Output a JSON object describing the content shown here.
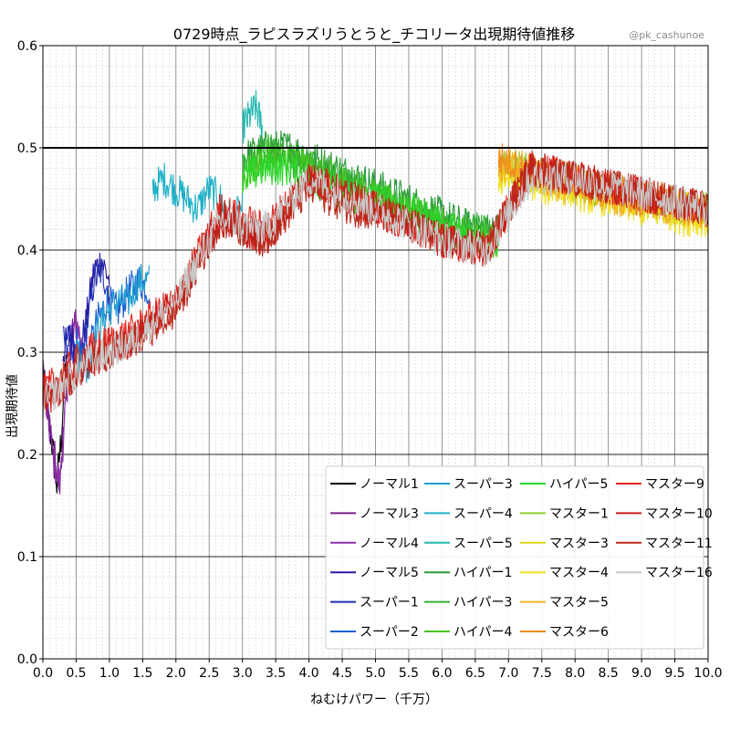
{
  "chart_data": {
    "type": "line",
    "title": "0729時点_ラピスラズリうとうと_チコリータ出現期待値推移",
    "credit": "@pk_cashunoe",
    "xlabel": "ねむけパワー（千万）",
    "ylabel": "出現期待値",
    "xlim": [
      0.0,
      10.0
    ],
    "ylim": [
      0.0,
      0.6
    ],
    "xticks": [
      "0.0",
      "0.5",
      "1.0",
      "1.5",
      "2.0",
      "2.5",
      "3.0",
      "3.5",
      "4.0",
      "4.5",
      "5.0",
      "5.5",
      "6.0",
      "6.5",
      "7.0",
      "7.5",
      "8.0",
      "8.5",
      "9.0",
      "9.5",
      "10.0"
    ],
    "yticks": [
      "0.0",
      "0.1",
      "0.2",
      "0.3",
      "0.4",
      "0.5",
      "0.6"
    ],
    "grid": true,
    "reference_line": {
      "y": 0.5,
      "color": "#000000"
    },
    "legend_position": "lower-right",
    "series": [
      {
        "name": "ノーマル1",
        "color": "#000000",
        "x_range": [
          0.0,
          0.35
        ],
        "values": [
          0.28,
          0.24,
          0.21,
          0.17,
          0.22,
          0.3
        ]
      },
      {
        "name": "ノーマル3",
        "color": "#7a1f8a",
        "x_range": [
          0.0,
          0.5
        ],
        "values": [
          0.28,
          0.24,
          0.2,
          0.18,
          0.24,
          0.31,
          0.33
        ]
      },
      {
        "name": "ノーマル4",
        "color": "#8b2fa8",
        "x_range": [
          0.0,
          0.6
        ],
        "values": [
          0.27,
          0.23,
          0.19,
          0.17,
          0.25,
          0.32,
          0.33,
          0.3
        ]
      },
      {
        "name": "ノーマル5",
        "color": "#2a1a9e",
        "x_range": [
          0.3,
          1.0
        ],
        "values": [
          0.3,
          0.32,
          0.29,
          0.33,
          0.38,
          0.39,
          0.37
        ]
      },
      {
        "name": "スーパー1",
        "color": "#1f2fb0",
        "x_range": [
          0.3,
          1.0
        ],
        "values": [
          0.31,
          0.31,
          0.28,
          0.32,
          0.37,
          0.38,
          0.36
        ]
      },
      {
        "name": "スーパー2",
        "color": "#1f5fd0",
        "x_range": [
          0.5,
          1.6
        ],
        "values": [
          0.31,
          0.29,
          0.33,
          0.35,
          0.34,
          0.36,
          0.37,
          0.36
        ]
      },
      {
        "name": "スーパー3",
        "color": "#1f9fd0",
        "x_range": [
          0.5,
          1.6
        ],
        "values": [
          0.3,
          0.28,
          0.32,
          0.34,
          0.35,
          0.35,
          0.37,
          0.37
        ]
      },
      {
        "name": "スーパー4",
        "color": "#1fb0c8",
        "x_range": [
          1.65,
          3.0
        ],
        "values": [
          0.46,
          0.47,
          0.46,
          0.45,
          0.44,
          0.46,
          0.45,
          0.43,
          0.44
        ]
      },
      {
        "name": "スーパー5",
        "color": "#25b8b0",
        "x_range": [
          3.0,
          3.3
        ],
        "values": [
          0.52,
          0.53,
          0.54,
          0.52
        ]
      },
      {
        "name": "ハイパー1",
        "color": "#2a9a3a",
        "x_range": [
          3.0,
          6.85
        ],
        "values": [
          0.49,
          0.5,
          0.5,
          0.49,
          0.48,
          0.47,
          0.46,
          0.45,
          0.44,
          0.43,
          0.42,
          0.42
        ]
      },
      {
        "name": "ハイパー3",
        "color": "#34b034",
        "x_range": [
          3.0,
          6.85
        ],
        "values": [
          0.48,
          0.5,
          0.49,
          0.48,
          0.47,
          0.46,
          0.45,
          0.44,
          0.43,
          0.42,
          0.42,
          0.41
        ]
      },
      {
        "name": "ハイパー4",
        "color": "#44c41f",
        "x_range": [
          3.0,
          6.85
        ],
        "values": [
          0.47,
          0.49,
          0.49,
          0.48,
          0.47,
          0.46,
          0.45,
          0.44,
          0.43,
          0.42,
          0.41,
          0.41
        ]
      },
      {
        "name": "ハイパー5",
        "color": "#2ad62a",
        "x_range": [
          3.0,
          6.85
        ],
        "values": [
          0.47,
          0.48,
          0.48,
          0.47,
          0.46,
          0.45,
          0.45,
          0.44,
          0.43,
          0.42,
          0.41,
          0.41
        ]
      },
      {
        "name": "マスター1",
        "color": "#8ed02a",
        "x_range": [
          6.85,
          10.0
        ],
        "values": [
          0.48,
          0.48,
          0.47,
          0.47,
          0.46,
          0.46,
          0.45,
          0.45,
          0.44,
          0.44
        ]
      },
      {
        "name": "マスター3",
        "color": "#d8d81f",
        "x_range": [
          6.85,
          10.0
        ],
        "values": [
          0.48,
          0.47,
          0.47,
          0.46,
          0.46,
          0.45,
          0.45,
          0.44,
          0.44,
          0.43
        ]
      },
      {
        "name": "マスター4",
        "color": "#f0e01f",
        "x_range": [
          6.85,
          10.0
        ],
        "values": [
          0.47,
          0.47,
          0.46,
          0.46,
          0.45,
          0.45,
          0.44,
          0.44,
          0.43,
          0.43
        ]
      },
      {
        "name": "マスター5",
        "color": "#f0b41f",
        "x_range": [
          6.85,
          10.0
        ],
        "values": [
          0.48,
          0.48,
          0.47,
          0.46,
          0.46,
          0.45,
          0.45,
          0.44,
          0.44,
          0.44
        ]
      },
      {
        "name": "マスター6",
        "color": "#f08a1f",
        "x_range": [
          6.85,
          10.0
        ],
        "values": [
          0.49,
          0.48,
          0.47,
          0.47,
          0.46,
          0.46,
          0.45,
          0.45,
          0.44,
          0.44
        ]
      },
      {
        "name": "マスター9",
        "color": "#e0281f",
        "x_range": [
          0.0,
          10.0
        ],
        "values": [
          0.26,
          0.3,
          0.32,
          0.35,
          0.44,
          0.42,
          0.47,
          0.45,
          0.43,
          0.41,
          0.4,
          0.48,
          0.47,
          0.46,
          0.45,
          0.44
        ]
      },
      {
        "name": "マスター10",
        "color": "#c81a1a",
        "x_range": [
          0.0,
          10.0
        ],
        "values": [
          0.25,
          0.29,
          0.31,
          0.35,
          0.43,
          0.41,
          0.47,
          0.45,
          0.43,
          0.41,
          0.4,
          0.48,
          0.47,
          0.46,
          0.45,
          0.44
        ]
      },
      {
        "name": "マスター11",
        "color": "#b8281a",
        "x_range": [
          0.0,
          10.0
        ],
        "values": [
          0.25,
          0.29,
          0.31,
          0.34,
          0.43,
          0.41,
          0.46,
          0.44,
          0.43,
          0.41,
          0.4,
          0.48,
          0.47,
          0.46,
          0.45,
          0.44
        ]
      },
      {
        "name": "マスター16",
        "color": "#c8c8c8",
        "x_range": [
          0.0,
          10.0
        ],
        "values": [
          0.25,
          0.29,
          0.31,
          0.35,
          0.43,
          0.42,
          0.47,
          0.45,
          0.43,
          0.41,
          0.4,
          0.47,
          0.47,
          0.46,
          0.45,
          0.44
        ]
      }
    ]
  }
}
